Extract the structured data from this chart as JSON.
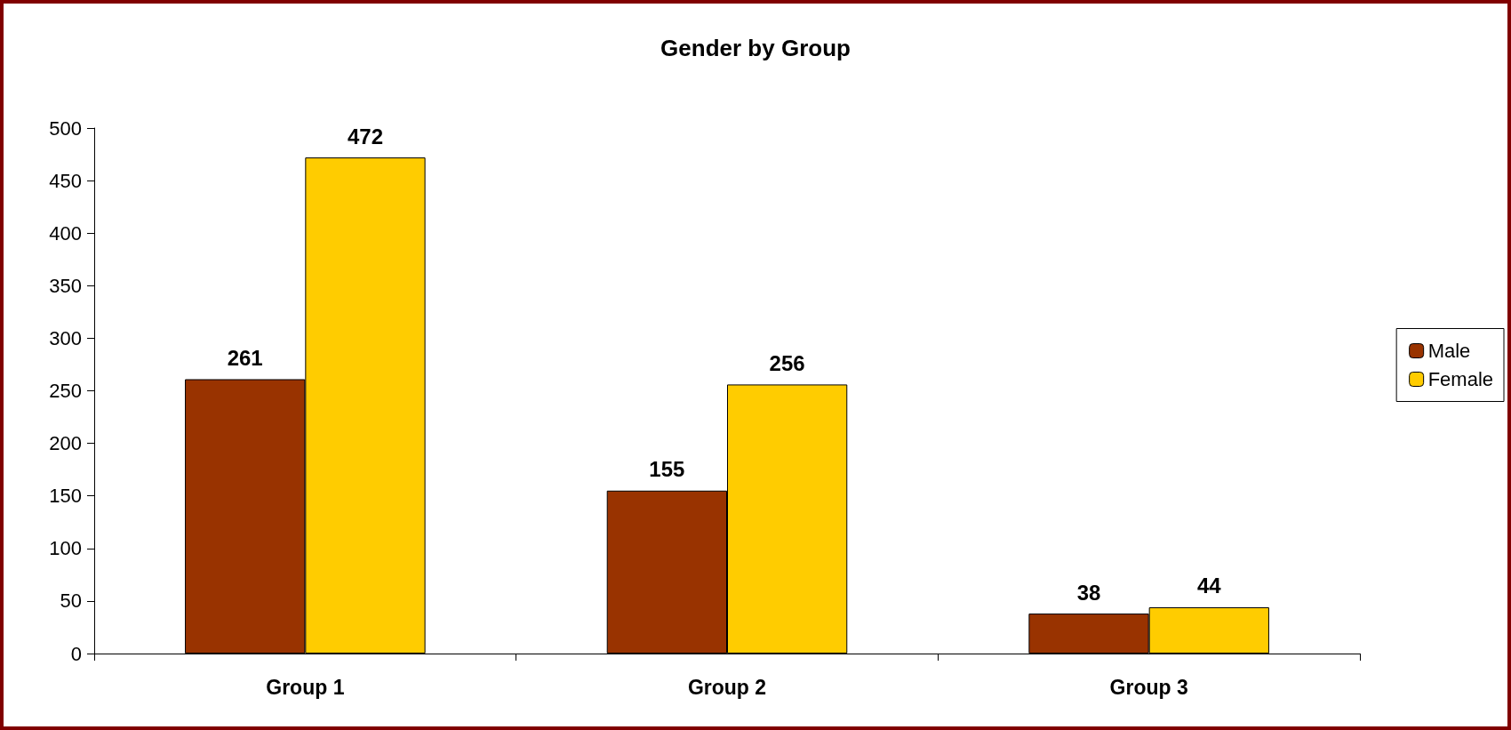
{
  "chart_data": {
    "type": "bar",
    "title": "Gender by Group",
    "categories": [
      "Group 1",
      "Group 2",
      "Group 3"
    ],
    "series": [
      {
        "name": "Male",
        "color": "#993300",
        "values": [
          261,
          155,
          38
        ]
      },
      {
        "name": "Female",
        "color": "#ffcc00",
        "values": [
          472,
          256,
          44
        ]
      }
    ],
    "ylim": [
      0,
      500
    ],
    "yticks": [
      0,
      50,
      100,
      150,
      200,
      250,
      300,
      350,
      400,
      450,
      500
    ],
    "grid": false,
    "legend": "right",
    "data_labels": true
  }
}
